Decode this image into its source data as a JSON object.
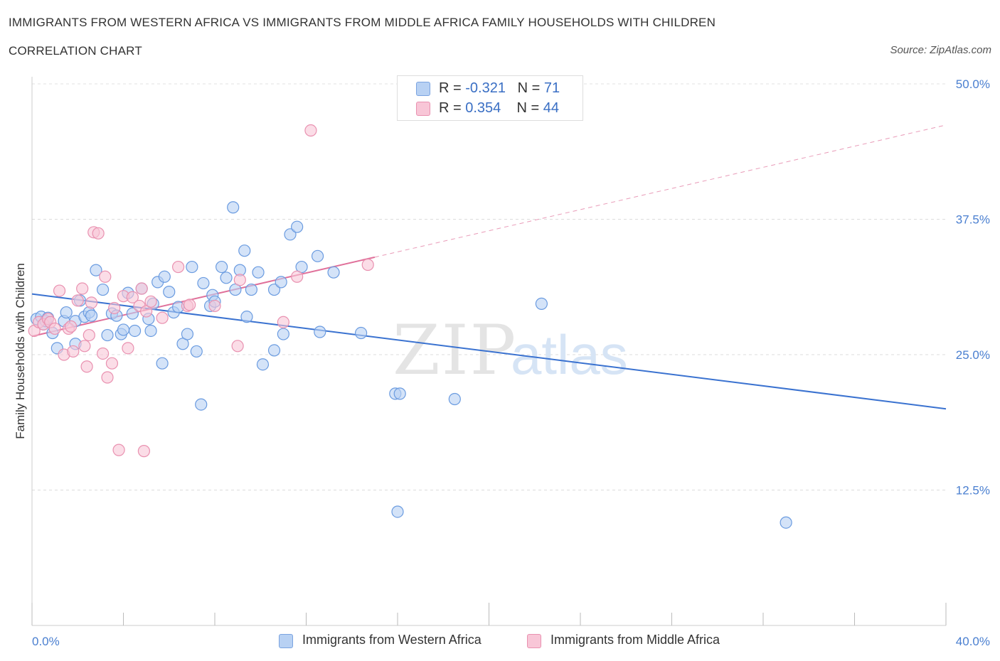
{
  "title": "IMMIGRANTS FROM WESTERN AFRICA VS IMMIGRANTS FROM MIDDLE AFRICA FAMILY HOUSEHOLDS WITH CHILDREN",
  "subtitle": "CORRELATION CHART",
  "source": "Source: ZipAtlas.com",
  "watermark": {
    "zip": "ZIP",
    "atlas": "atlas"
  },
  "legend": {
    "rows": [
      {
        "r_label": "R = ",
        "r_value": "-0.321",
        "n_label": "N = ",
        "n_value": "71",
        "color": "#b8d1f3",
        "stroke": "#7aa3e0"
      },
      {
        "r_label": "R = ",
        "r_value": "0.354",
        "n_label": "N = ",
        "n_value": "44",
        "color": "#f8c6d7",
        "stroke": "#e991b0"
      }
    ]
  },
  "chart_data": {
    "type": "scatter",
    "xlabel": "",
    "ylabel": "Family Households with Children",
    "xlim": [
      0,
      40
    ],
    "ylim": [
      0,
      50
    ],
    "x_tick_labels": [
      "0.0%",
      "40.0%"
    ],
    "y_ticks": [
      12.5,
      25.0,
      37.5,
      50.0
    ],
    "y_tick_labels": [
      "12.5%",
      "25.0%",
      "37.5%",
      "50.0%"
    ],
    "grid": true,
    "legend_position": "top-center",
    "series": [
      {
        "name": "Immigrants from Western Africa",
        "color": "#6a9be0",
        "fill": "#b8d1f3",
        "line_color": "#3a72d0",
        "trend": {
          "x": [
            0,
            40
          ],
          "y": [
            30.6,
            20.0
          ],
          "dashed_extension": false
        },
        "points": [
          [
            0.2,
            28.3
          ],
          [
            0.4,
            28.5
          ],
          [
            0.5,
            27.8
          ],
          [
            0.6,
            28.1
          ],
          [
            0.7,
            28.4
          ],
          [
            0.9,
            27.0
          ],
          [
            1.1,
            25.6
          ],
          [
            1.4,
            28.1
          ],
          [
            1.5,
            28.9
          ],
          [
            1.9,
            26.0
          ],
          [
            1.9,
            28.1
          ],
          [
            2.1,
            30.0
          ],
          [
            2.3,
            28.5
          ],
          [
            2.5,
            28.9
          ],
          [
            2.6,
            28.6
          ],
          [
            2.8,
            32.8
          ],
          [
            3.1,
            31.0
          ],
          [
            3.3,
            26.8
          ],
          [
            3.5,
            28.8
          ],
          [
            3.7,
            28.6
          ],
          [
            3.9,
            26.9
          ],
          [
            4.0,
            27.3
          ],
          [
            4.2,
            30.7
          ],
          [
            4.4,
            28.8
          ],
          [
            4.5,
            27.2
          ],
          [
            4.8,
            31.1
          ],
          [
            5.1,
            28.3
          ],
          [
            5.2,
            27.2
          ],
          [
            5.3,
            29.7
          ],
          [
            5.5,
            31.7
          ],
          [
            5.7,
            24.2
          ],
          [
            5.8,
            32.2
          ],
          [
            6.0,
            30.8
          ],
          [
            6.2,
            28.9
          ],
          [
            6.4,
            29.4
          ],
          [
            6.6,
            26.0
          ],
          [
            6.8,
            26.9
          ],
          [
            7.0,
            33.1
          ],
          [
            7.2,
            25.3
          ],
          [
            7.4,
            20.4
          ],
          [
            7.5,
            31.6
          ],
          [
            7.8,
            29.5
          ],
          [
            7.9,
            30.5
          ],
          [
            8.0,
            29.9
          ],
          [
            8.3,
            33.1
          ],
          [
            8.5,
            32.1
          ],
          [
            8.8,
            38.6
          ],
          [
            8.9,
            31.0
          ],
          [
            9.1,
            32.8
          ],
          [
            9.3,
            34.6
          ],
          [
            9.4,
            28.5
          ],
          [
            9.6,
            31.0
          ],
          [
            9.9,
            32.6
          ],
          [
            10.1,
            24.1
          ],
          [
            10.6,
            25.4
          ],
          [
            10.6,
            31.0
          ],
          [
            10.9,
            31.7
          ],
          [
            11.0,
            26.9
          ],
          [
            11.3,
            36.1
          ],
          [
            11.6,
            36.8
          ],
          [
            11.8,
            33.1
          ],
          [
            12.5,
            34.1
          ],
          [
            12.6,
            27.1
          ],
          [
            13.2,
            32.6
          ],
          [
            14.4,
            27.0
          ],
          [
            15.9,
            21.4
          ],
          [
            16.1,
            21.4
          ],
          [
            18.5,
            20.9
          ],
          [
            22.3,
            29.7
          ],
          [
            16.0,
            10.5
          ],
          [
            33.0,
            9.5
          ]
        ]
      },
      {
        "name": "Immigrants from Middle Africa",
        "color": "#e991b0",
        "fill": "#f8c6d7",
        "line_color": "#e0709a",
        "trend": {
          "x": [
            0,
            15.0
          ],
          "y": [
            26.7,
            34.0
          ],
          "dashed_extension_to": [
            40,
            46.2
          ]
        },
        "points": [
          [
            0.1,
            27.2
          ],
          [
            0.3,
            28.0
          ],
          [
            0.5,
            27.8
          ],
          [
            0.7,
            28.3
          ],
          [
            0.8,
            28.0
          ],
          [
            1.0,
            27.4
          ],
          [
            1.2,
            30.9
          ],
          [
            1.4,
            25.0
          ],
          [
            1.6,
            27.4
          ],
          [
            1.7,
            27.6
          ],
          [
            1.8,
            25.3
          ],
          [
            2.0,
            30.0
          ],
          [
            2.2,
            31.1
          ],
          [
            2.3,
            25.8
          ],
          [
            2.4,
            23.9
          ],
          [
            2.5,
            26.8
          ],
          [
            2.6,
            29.8
          ],
          [
            2.7,
            36.3
          ],
          [
            2.9,
            36.2
          ],
          [
            3.1,
            25.1
          ],
          [
            3.2,
            32.2
          ],
          [
            3.3,
            22.9
          ],
          [
            3.5,
            24.2
          ],
          [
            3.6,
            29.3
          ],
          [
            3.8,
            16.2
          ],
          [
            4.0,
            30.4
          ],
          [
            4.2,
            25.6
          ],
          [
            4.4,
            30.3
          ],
          [
            4.7,
            29.5
          ],
          [
            4.8,
            31.1
          ],
          [
            4.9,
            16.1
          ],
          [
            5.0,
            29.0
          ],
          [
            5.2,
            29.9
          ],
          [
            5.7,
            28.4
          ],
          [
            6.4,
            33.1
          ],
          [
            6.8,
            29.5
          ],
          [
            6.9,
            29.6
          ],
          [
            8.0,
            29.5
          ],
          [
            9.0,
            25.8
          ],
          [
            9.1,
            31.9
          ],
          [
            11.0,
            28.0
          ],
          [
            11.6,
            32.2
          ],
          [
            12.2,
            45.7
          ],
          [
            14.7,
            33.3
          ]
        ]
      }
    ]
  },
  "bottom_legend": [
    {
      "label": "Immigrants from Western Africa",
      "color": "#b8d1f3",
      "stroke": "#7aa3e0"
    },
    {
      "label": "Immigrants from Middle Africa",
      "color": "#f8c6d7",
      "stroke": "#e991b0"
    }
  ]
}
